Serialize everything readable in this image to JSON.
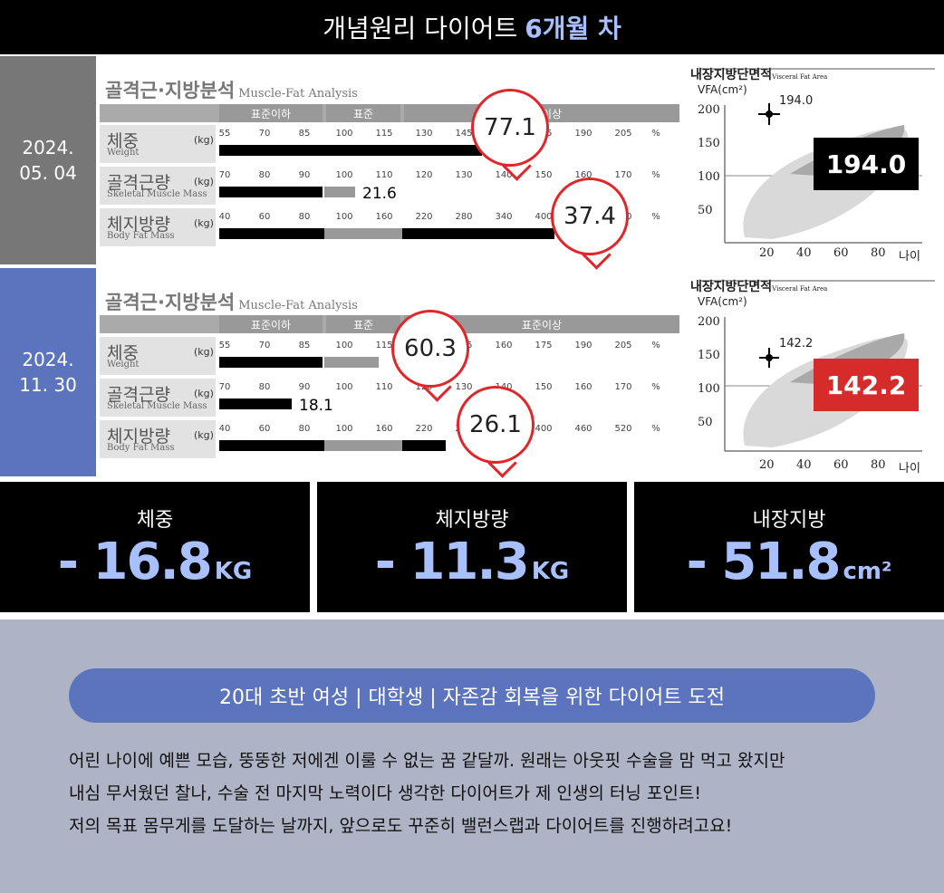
{
  "header": {
    "title_prefix": "개념원리 다이어트",
    "title_highlight": "6개월 차"
  },
  "reports": [
    {
      "date_line1": "2024.",
      "date_line2": "05. 04",
      "panel_title": "골격근·지방분석",
      "panel_title_en": "Muscle-Fat Analysis",
      "bands": {
        "low": "표준이하",
        "normal": "표준",
        "high": "표준이상"
      },
      "rows": [
        {
          "ko": "체중",
          "en": "Weight",
          "unit": "(kg)",
          "scale": [
            "55",
            "70",
            "85",
            "100",
            "115",
            "130",
            "145",
            "160",
            "175",
            "190",
            "205",
            "%"
          ],
          "value": "77.1"
        },
        {
          "ko": "골격근량",
          "en": "Skeletal Muscle Mass",
          "unit": "(kg)",
          "scale": [
            "70",
            "80",
            "90",
            "100",
            "110",
            "120",
            "130",
            "140",
            "150",
            "160",
            "170",
            "%"
          ],
          "value": "21.6"
        },
        {
          "ko": "체지방량",
          "en": "Body Fat Mass",
          "unit": "(kg)",
          "scale": [
            "40",
            "60",
            "80",
            "100",
            "160",
            "220",
            "280",
            "340",
            "400",
            "460",
            "520",
            "%"
          ],
          "value": "37.4"
        }
      ],
      "vfa": {
        "title": "내장지방단면적",
        "title_en": "Visceral Fat Area",
        "ylabel": "VFA(cm²)",
        "yticks": [
          "200",
          "150",
          "100",
          "50"
        ],
        "xticks": [
          "20",
          "40",
          "60",
          "80",
          "나이"
        ],
        "point_label": "194.0",
        "value": "194.0",
        "box_color": "#000000"
      }
    },
    {
      "date_line1": "2024.",
      "date_line2": "11. 30",
      "panel_title": "골격근·지방분석",
      "panel_title_en": "Muscle-Fat Analysis",
      "bands": {
        "low": "표준이하",
        "normal": "표준",
        "high": "표준이상"
      },
      "rows": [
        {
          "ko": "체중",
          "en": "Weight",
          "unit": "(kg)",
          "scale": [
            "55",
            "70",
            "85",
            "100",
            "115",
            "130",
            "145",
            "160",
            "175",
            "190",
            "205",
            "%"
          ],
          "value": "60.3"
        },
        {
          "ko": "골격근량",
          "en": "Skeletal Muscle Mass",
          "unit": "(kg)",
          "scale": [
            "70",
            "80",
            "90",
            "100",
            "110",
            "120",
            "130",
            "140",
            "150",
            "160",
            "170",
            "%"
          ],
          "value": "18.1"
        },
        {
          "ko": "체지방량",
          "en": "Body Fat Mass",
          "unit": "(kg)",
          "scale": [
            "40",
            "60",
            "80",
            "100",
            "160",
            "220",
            "280",
            "340",
            "400",
            "460",
            "520",
            "%"
          ],
          "value": "26.1"
        }
      ],
      "vfa": {
        "title": "내장지방단면적",
        "title_en": "Visceral Fat Area",
        "ylabel": "VFA(cm²)",
        "yticks": [
          "200",
          "150",
          "100",
          "50"
        ],
        "xticks": [
          "20",
          "40",
          "60",
          "80",
          "나이"
        ],
        "point_label": "142.2",
        "value": "142.2",
        "box_color": "#d62b2b"
      }
    }
  ],
  "stats": [
    {
      "label": "체중",
      "value": "- 16.8",
      "unit": "KG"
    },
    {
      "label": "체지방량",
      "value": "- 11.3",
      "unit": "KG"
    },
    {
      "label": "내장지방",
      "value": "- 51.8",
      "unit": "cm²"
    }
  ],
  "profile": {
    "tagline": "20대 초반 여성 | 대학생 | 자존감 회복을 위한 다이어트 도전",
    "lines": [
      "어린 나이에 예쁜 모습, 뚱뚱한 저에겐 이룰 수 없는 꿈 같달까. 원래는 아웃핏 수술을 맘 먹고 왔지만",
      "내심 무서웠던 찰나, 수술 전 마지막 노력이다 생각한 다이어트가 제 인생의 터닝 포인트!",
      "저의 목표 몸무게를 도달하는 날까지, 앞으로도 꾸준히 밸런스랩과 다이어트를 진행하려고요!"
    ]
  },
  "colors": {
    "accent": "#a9c0ff",
    "blue_panel": "#5b74bd",
    "gray_panel": "#777777",
    "alert": "#d62b2b",
    "bubble": "#e0262a"
  }
}
